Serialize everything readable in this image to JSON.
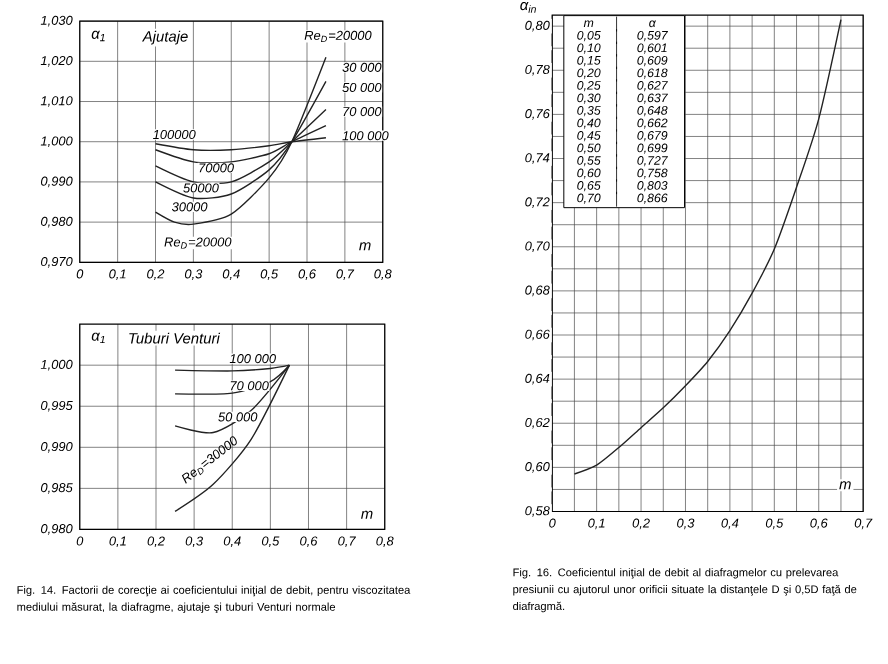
{
  "chart_data": [
    {
      "type": "line",
      "title": "Ajutaje",
      "xlabel": "m",
      "ylabel": "α$_{1}$",
      "xlim": [
        0,
        0.8
      ],
      "ylim": [
        0.97,
        1.03
      ],
      "grid": true,
      "line_style": "solid",
      "xticks": [
        0,
        {
          "value": 0.1,
          "label": "0,1"
        },
        {
          "value": 0.2,
          "label": "0,2"
        },
        {
          "value": 0.3,
          "label": "0,3"
        },
        {
          "value": 0.4,
          "label": "0,4"
        },
        {
          "value": 0.5,
          "label": "0,5"
        },
        {
          "value": 0.6,
          "label": "0,6"
        },
        {
          "value": 0.7,
          "label": "0,7"
        },
        {
          "value": 0.8,
          "label": "0,8"
        }
      ],
      "yticks": [
        {
          "value": 0.97,
          "label": "0,970"
        },
        {
          "value": 0.98,
          "label": "0,980"
        },
        {
          "value": 0.99,
          "label": "0,990"
        },
        {
          "value": 1.0,
          "label": "1,000"
        },
        {
          "value": 1.01,
          "label": "1,010"
        },
        {
          "value": 1.02,
          "label": "1,020"
        },
        {
          "value": 1.03,
          "label": "1,030"
        }
      ],
      "series": [
        {
          "color": "#222222",
          "x": [
            0.2,
            0.3,
            0.4,
            0.5,
            0.56,
            0.65
          ],
          "values": [
            0.9995,
            0.998,
            0.998,
            0.999,
            1.0,
            1.001
          ]
        },
        {
          "color": "#222222",
          "x": [
            0.2,
            0.3,
            0.4,
            0.5,
            0.56,
            0.65
          ],
          "values": [
            0.998,
            0.995,
            0.995,
            0.997,
            1.0,
            1.004
          ]
        },
        {
          "color": "#222222",
          "x": [
            0.2,
            0.3,
            0.4,
            0.5,
            0.56,
            0.65
          ],
          "values": [
            0.994,
            0.99,
            0.99,
            0.995,
            1.0,
            1.008
          ]
        },
        {
          "color": "#222222",
          "x": [
            0.2,
            0.3,
            0.4,
            0.5,
            0.56,
            0.65
          ],
          "values": [
            0.99,
            0.986,
            0.987,
            0.993,
            1.0,
            1.015
          ]
        },
        {
          "color": "#222222",
          "x": [
            0.2,
            0.25,
            0.3,
            0.4,
            0.5,
            0.56,
            0.65
          ],
          "values": [
            0.9825,
            0.98,
            0.9795,
            0.982,
            0.991,
            1.0,
            1.021
          ]
        }
      ],
      "annotations": [
        "100000",
        "70000",
        "50000",
        "30000",
        "Re$_{D}$=20000",
        "Re$_{D}$=20000",
        "30 000",
        "50 000",
        "70 000",
        "100 000"
      ]
    },
    {
      "type": "line",
      "title": "Tuburi Venturi",
      "xlabel": "m",
      "ylabel": "α$_{1}$",
      "xlim": [
        0,
        0.8
      ],
      "ylim": [
        0.98,
        1.005
      ],
      "grid": true,
      "line_style": "solid",
      "xticks": [
        0,
        {
          "value": 0.1,
          "label": "0,1"
        },
        {
          "value": 0.2,
          "label": "0,2"
        },
        {
          "value": 0.3,
          "label": "0,3"
        },
        {
          "value": 0.4,
          "label": "0,4"
        },
        {
          "value": 0.5,
          "label": "0,5"
        },
        {
          "value": 0.6,
          "label": "0,6"
        },
        {
          "value": 0.7,
          "label": "0,7"
        },
        {
          "value": 0.8,
          "label": "0,8"
        }
      ],
      "yticks": [
        {
          "value": 0.98,
          "label": "0,980"
        },
        {
          "value": 0.985,
          "label": "0,985"
        },
        {
          "value": 0.99,
          "label": "0,990"
        },
        {
          "value": 0.995,
          "label": "0,995"
        },
        {
          "value": 1.0,
          "label": "1,000"
        }
      ],
      "series": [
        {
          "color": "#222222",
          "x": [
            0.25,
            0.4,
            0.5,
            0.55
          ],
          "values": [
            0.9994,
            0.9993,
            0.9996,
            1.0
          ]
        },
        {
          "color": "#222222",
          "x": [
            0.25,
            0.4,
            0.5,
            0.55
          ],
          "values": [
            0.9965,
            0.9966,
            0.998,
            1.0
          ]
        },
        {
          "color": "#222222",
          "x": [
            0.25,
            0.35,
            0.45,
            0.55
          ],
          "values": [
            0.9926,
            0.9918,
            0.9945,
            1.0
          ]
        },
        {
          "color": "#222222",
          "x": [
            0.25,
            0.35,
            0.45,
            0.55
          ],
          "values": [
            0.9822,
            0.9855,
            0.991,
            1.0
          ]
        }
      ],
      "annotations": [
        "Fig. 14. Factorii de corecţie ai coeficientului iniţial de debit, pentru viscozitatea mediului măsurat, la diafragme, ajutaje şi tuburi Venturi normale",
        "100 000",
        "70 000",
        "50 000",
        "Re$_{D}$=30000"
      ]
    },
    {
      "type": "line",
      "xlabel": "m",
      "ylabel": "α$_{in}$",
      "xlim": [
        0,
        0.7
      ],
      "ylim": [
        0.58,
        0.805
      ],
      "grid": true,
      "line_style": "solid",
      "xticks": [
        0,
        {
          "value": 0.05,
          "label": null
        },
        {
          "value": 0.1,
          "label": "0,1"
        },
        {
          "value": 0.15,
          "label": null
        },
        {
          "value": 0.2,
          "label": "0,2"
        },
        {
          "value": 0.25,
          "label": null
        },
        {
          "value": 0.3,
          "label": "0,3"
        },
        {
          "value": 0.35,
          "label": null
        },
        {
          "value": 0.4,
          "label": "0,4"
        },
        {
          "value": 0.45,
          "label": null
        },
        {
          "value": 0.5,
          "label": "0,5"
        },
        {
          "value": 0.55,
          "label": null
        },
        {
          "value": 0.6,
          "label": "0,6"
        },
        {
          "value": 0.65,
          "label": null
        },
        {
          "value": 0.7,
          "label": "0,7"
        }
      ],
      "yticks": [
        {
          "value": 0.58,
          "label": "0,58"
        },
        {
          "value": 0.59,
          "label": null
        },
        {
          "value": 0.6,
          "label": "0,60"
        },
        {
          "value": 0.61,
          "label": null
        },
        {
          "value": 0.62,
          "label": "0,62"
        },
        {
          "value": 0.63,
          "label": null
        },
        {
          "value": 0.64,
          "label": "0,64"
        },
        {
          "value": 0.65,
          "label": null
        },
        {
          "value": 0.66,
          "label": "0,66"
        },
        {
          "value": 0.67,
          "label": null
        },
        {
          "value": 0.68,
          "label": "0,68"
        },
        {
          "value": 0.69,
          "label": null
        },
        {
          "value": 0.7,
          "label": "0,70"
        },
        {
          "value": 0.71,
          "label": null
        },
        {
          "value": 0.72,
          "label": "0,72"
        },
        {
          "value": 0.73,
          "label": null
        },
        {
          "value": 0.74,
          "label": "0,74"
        },
        {
          "value": 0.75,
          "label": null
        },
        {
          "value": 0.76,
          "label": "0,76"
        },
        {
          "value": 0.77,
          "label": null
        },
        {
          "value": 0.78,
          "label": "0,78"
        },
        {
          "value": 0.79,
          "label": null
        },
        {
          "value": 0.8,
          "label": "0,80"
        }
      ],
      "series": [
        {
          "color": "#222222",
          "x": [
            0.05,
            0.1,
            0.15,
            0.2,
            0.25,
            0.3,
            0.35,
            0.4,
            0.45,
            0.5,
            0.55,
            0.6,
            0.65
          ],
          "values": [
            0.597,
            0.601,
            0.609,
            0.618,
            0.627,
            0.637,
            0.648,
            0.662,
            0.679,
            0.699,
            0.727,
            0.758,
            0.803
          ]
        }
      ],
      "annotations": [
        "Fig. 16. Coeficientul iniţial de debit al diafragmelor cu prelevarea presiunii cu ajutorul unor orificii situate la distanţele D şi 0,5D faţă de diafragmă.",
        "m",
        "α",
        "0,05",
        "0,597",
        "0,10",
        "0,601",
        "0,15",
        "0,609",
        "0,20",
        "0,618",
        "0,25",
        "0,627",
        "0,30",
        "0,637",
        "0,35",
        "0,648",
        "0,40",
        "0,662",
        "0,45",
        "0,679",
        "0,50",
        "0,699",
        "0,55",
        "0,727",
        "0,60",
        "0,758",
        "0,65",
        "0,803",
        "0,70",
        "0,866"
      ]
    }
  ]
}
